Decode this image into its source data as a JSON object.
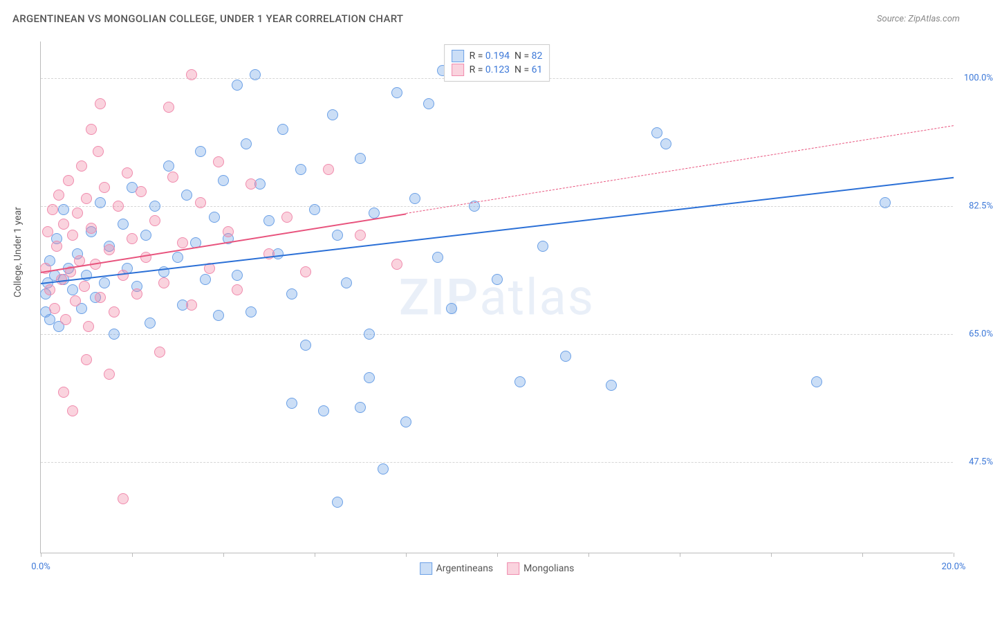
{
  "title": "ARGENTINEAN VS MONGOLIAN COLLEGE, UNDER 1 YEAR CORRELATION CHART",
  "source": "Source: ZipAtlas.com",
  "ylabel": "College, Under 1 year",
  "watermark_prefix": "ZIP",
  "watermark_suffix": "atlas",
  "chart": {
    "type": "scatter",
    "background_color": "#ffffff",
    "grid_color": "#d5d5d5",
    "axis_color": "#bbbbbb",
    "xlim": [
      0,
      20
    ],
    "ylim": [
      35,
      105
    ],
    "x_tick_positions": [
      0,
      2,
      4,
      6,
      8,
      10,
      12,
      14,
      16,
      18,
      20
    ],
    "x_tick_labels": {
      "0": "0.0%",
      "20": "20.0%"
    },
    "x_label_color": "#3c78d8",
    "y_grid_values": [
      47.5,
      65.0,
      82.5,
      100.0
    ],
    "y_tick_labels": [
      "47.5%",
      "65.0%",
      "82.5%",
      "100.0%"
    ],
    "y_label_color": "#3c78d8",
    "label_fontsize": 13
  },
  "series": [
    {
      "name": "Argentineans",
      "color_fill": "rgba(107, 160, 230, 0.35)",
      "color_stroke": "#6ba0e6",
      "line_color": "#2a6fd6",
      "r": 0.194,
      "n": 82,
      "regression": {
        "x1": 0.0,
        "y1": 72.0,
        "x2": 20.0,
        "y2": 86.5
      },
      "points": [
        [
          0.1,
          70.5
        ],
        [
          0.1,
          68.0
        ],
        [
          0.15,
          72.0
        ],
        [
          0.2,
          67.0
        ],
        [
          0.2,
          75.0
        ],
        [
          0.3,
          73.0
        ],
        [
          0.4,
          66.0
        ],
        [
          0.35,
          78.0
        ],
        [
          0.5,
          72.5
        ],
        [
          0.5,
          82.0
        ],
        [
          0.6,
          74.0
        ],
        [
          0.7,
          71.0
        ],
        [
          0.8,
          76.0
        ],
        [
          0.9,
          68.5
        ],
        [
          1.0,
          73.0
        ],
        [
          1.1,
          79.0
        ],
        [
          1.2,
          70.0
        ],
        [
          1.3,
          83.0
        ],
        [
          1.4,
          72.0
        ],
        [
          1.5,
          77.0
        ],
        [
          1.6,
          65.0
        ],
        [
          1.8,
          80.0
        ],
        [
          1.9,
          74.0
        ],
        [
          2.0,
          85.0
        ],
        [
          2.1,
          71.5
        ],
        [
          2.3,
          78.5
        ],
        [
          2.4,
          66.5
        ],
        [
          2.5,
          82.5
        ],
        [
          2.7,
          73.5
        ],
        [
          2.8,
          88.0
        ],
        [
          3.0,
          75.5
        ],
        [
          3.1,
          69.0
        ],
        [
          3.2,
          84.0
        ],
        [
          3.4,
          77.5
        ],
        [
          3.5,
          90.0
        ],
        [
          3.6,
          72.5
        ],
        [
          3.8,
          81.0
        ],
        [
          3.9,
          67.5
        ],
        [
          4.0,
          86.0
        ],
        [
          4.1,
          78.0
        ],
        [
          4.3,
          73.0
        ],
        [
          4.5,
          91.0
        ],
        [
          4.6,
          68.0
        ],
        [
          4.8,
          85.5
        ],
        [
          5.0,
          80.5
        ],
        [
          5.2,
          76.0
        ],
        [
          5.3,
          93.0
        ],
        [
          5.5,
          70.5
        ],
        [
          5.7,
          87.5
        ],
        [
          5.8,
          63.5
        ],
        [
          6.0,
          82.0
        ],
        [
          6.2,
          54.5
        ],
        [
          6.4,
          95.0
        ],
        [
          6.5,
          78.5
        ],
        [
          6.7,
          72.0
        ],
        [
          7.0,
          89.0
        ],
        [
          7.2,
          65.0
        ],
        [
          7.3,
          81.5
        ],
        [
          7.5,
          46.5
        ],
        [
          7.8,
          98.0
        ],
        [
          8.0,
          53.0
        ],
        [
          8.2,
          83.5
        ],
        [
          8.5,
          96.5
        ],
        [
          8.7,
          75.5
        ],
        [
          9.0,
          68.5
        ],
        [
          6.5,
          42.0
        ],
        [
          7.0,
          55.0
        ],
        [
          7.2,
          59.0
        ],
        [
          5.5,
          55.5
        ],
        [
          4.7,
          100.5
        ],
        [
          4.3,
          99.0
        ],
        [
          9.5,
          82.5
        ],
        [
          10.0,
          72.5
        ],
        [
          10.5,
          58.5
        ],
        [
          11.0,
          77.0
        ],
        [
          11.5,
          62.0
        ],
        [
          12.5,
          58.0
        ],
        [
          13.5,
          92.5
        ],
        [
          13.7,
          91.0
        ],
        [
          17.0,
          58.5
        ],
        [
          18.5,
          83.0
        ],
        [
          8.8,
          101.0
        ]
      ]
    },
    {
      "name": "Mongolians",
      "color_fill": "rgba(240, 128, 160, 0.35)",
      "color_stroke": "#f08bad",
      "line_color": "#e8537d",
      "r": 0.123,
      "n": 61,
      "regression_solid": {
        "x1": 0.0,
        "y1": 73.5,
        "x2": 8.0,
        "y2": 81.5
      },
      "regression_dash": {
        "x1": 8.0,
        "y1": 81.5,
        "x2": 20.0,
        "y2": 93.5
      },
      "points": [
        [
          0.1,
          74.0
        ],
        [
          0.15,
          79.0
        ],
        [
          0.2,
          71.0
        ],
        [
          0.25,
          82.0
        ],
        [
          0.3,
          68.5
        ],
        [
          0.35,
          77.0
        ],
        [
          0.4,
          84.0
        ],
        [
          0.45,
          72.5
        ],
        [
          0.5,
          80.0
        ],
        [
          0.55,
          67.0
        ],
        [
          0.6,
          86.0
        ],
        [
          0.65,
          73.5
        ],
        [
          0.7,
          78.5
        ],
        [
          0.75,
          69.5
        ],
        [
          0.8,
          81.5
        ],
        [
          0.85,
          75.0
        ],
        [
          0.9,
          88.0
        ],
        [
          0.95,
          71.5
        ],
        [
          1.0,
          83.5
        ],
        [
          1.05,
          66.0
        ],
        [
          1.1,
          79.5
        ],
        [
          1.2,
          74.5
        ],
        [
          1.25,
          90.0
        ],
        [
          1.3,
          70.0
        ],
        [
          1.4,
          85.0
        ],
        [
          1.5,
          76.5
        ],
        [
          1.6,
          68.0
        ],
        [
          1.7,
          82.5
        ],
        [
          1.8,
          73.0
        ],
        [
          1.9,
          87.0
        ],
        [
          2.0,
          78.0
        ],
        [
          2.1,
          70.5
        ],
        [
          2.2,
          84.5
        ],
        [
          2.3,
          75.5
        ],
        [
          2.5,
          80.5
        ],
        [
          2.7,
          72.0
        ],
        [
          2.9,
          86.5
        ],
        [
          3.1,
          77.5
        ],
        [
          3.3,
          69.0
        ],
        [
          3.5,
          83.0
        ],
        [
          3.7,
          74.0
        ],
        [
          3.9,
          88.5
        ],
        [
          4.1,
          79.0
        ],
        [
          4.3,
          71.0
        ],
        [
          4.6,
          85.5
        ],
        [
          5.0,
          76.0
        ],
        [
          5.4,
          81.0
        ],
        [
          5.8,
          73.5
        ],
        [
          6.3,
          87.5
        ],
        [
          7.0,
          78.5
        ],
        [
          7.8,
          74.5
        ],
        [
          0.5,
          57.0
        ],
        [
          0.7,
          54.5
        ],
        [
          1.0,
          61.5
        ],
        [
          1.1,
          93.0
        ],
        [
          1.3,
          96.5
        ],
        [
          1.5,
          59.5
        ],
        [
          1.8,
          42.5
        ],
        [
          2.8,
          96.0
        ],
        [
          2.6,
          62.5
        ],
        [
          3.3,
          100.5
        ]
      ]
    }
  ],
  "legend": {
    "r_label": "R =",
    "n_label": "N =",
    "value_color": "#3c78d8"
  }
}
